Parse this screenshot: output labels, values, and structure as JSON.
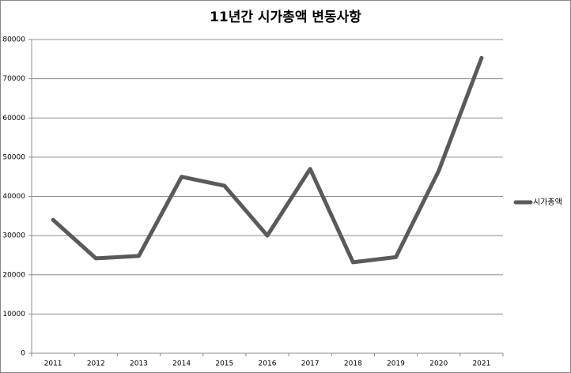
{
  "chart_data": {
    "type": "line",
    "title": "11년간 시가총액 변동사항",
    "categories": [
      "2011",
      "2012",
      "2013",
      "2014",
      "2015",
      "2016",
      "2017",
      "2018",
      "2019",
      "2020",
      "2021"
    ],
    "series": [
      {
        "name": "시가총액",
        "color": "#5a5a5a",
        "values": [
          34000,
          24200,
          24800,
          45000,
          42700,
          30000,
          47000,
          23200,
          24500,
          46500,
          75300
        ]
      }
    ],
    "ylim": [
      0,
      80000
    ],
    "yticks": [
      0,
      10000,
      20000,
      30000,
      40000,
      50000,
      60000,
      70000,
      80000
    ],
    "grid": true,
    "legend": "right"
  }
}
